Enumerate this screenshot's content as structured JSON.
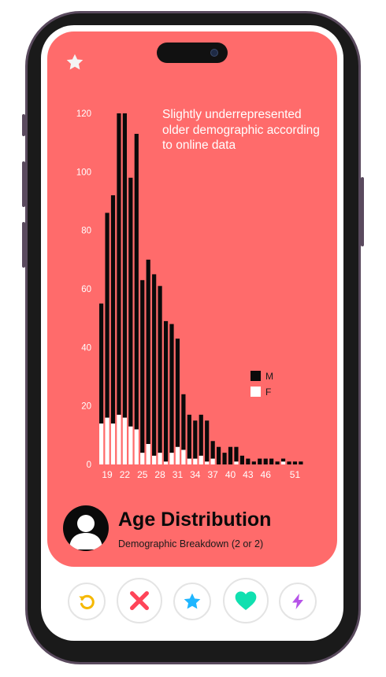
{
  "card": {
    "title": "Age Distribution",
    "subtitle": "Demographic Breakdown (2 or 2)"
  },
  "colors": {
    "card_bg": "#ff6b6b",
    "male": "#0a0a0a",
    "female": "#ffffff",
    "rewind": "#f5b800",
    "nope": "#ff4458",
    "super_like": "#1fb6ff",
    "like": "#10e0b0",
    "boost": "#b653e8"
  },
  "icons": [
    "star-icon",
    "avatar-icon",
    "rewind-icon",
    "nope-icon",
    "super-like-icon",
    "like-icon",
    "boost-icon"
  ],
  "chart_data": {
    "type": "bar",
    "stacked": true,
    "annotation": "Slightly underrepresented older demographic according to online data",
    "x": [
      18,
      19,
      20,
      21,
      22,
      23,
      24,
      25,
      26,
      27,
      28,
      29,
      30,
      31,
      32,
      33,
      34,
      35,
      36,
      37,
      38,
      39,
      40,
      41,
      42,
      43,
      44,
      45,
      46,
      47,
      48,
      49,
      50,
      51,
      52
    ],
    "x_tick_labels": [
      "19",
      "22",
      "25",
      "28",
      "31",
      "34",
      "37",
      "40",
      "43",
      "46",
      "51"
    ],
    "ylim": [
      0,
      120
    ],
    "y_ticks": [
      0,
      20,
      40,
      60,
      80,
      100,
      120
    ],
    "series": [
      {
        "name": "M",
        "values": [
          41,
          70,
          78,
          103,
          104,
          85,
          101,
          59,
          63,
          62,
          57,
          48,
          44,
          37,
          19,
          15,
          13,
          14,
          14,
          6,
          6,
          4,
          6,
          5,
          3,
          2,
          1,
          2,
          2,
          2,
          1,
          1,
          1,
          1,
          1
        ]
      },
      {
        "name": "F",
        "values": [
          14,
          16,
          14,
          17,
          16,
          13,
          12,
          4,
          7,
          3,
          4,
          1,
          4,
          6,
          5,
          2,
          2,
          3,
          1,
          2,
          0,
          0,
          0,
          1,
          0,
          0,
          0,
          0,
          0,
          0,
          0,
          1,
          0,
          0,
          0
        ]
      }
    ],
    "legend": [
      {
        "key": "M",
        "label": "M"
      },
      {
        "key": "F",
        "label": "F"
      }
    ],
    "legend_position": "right",
    "grid": false
  }
}
